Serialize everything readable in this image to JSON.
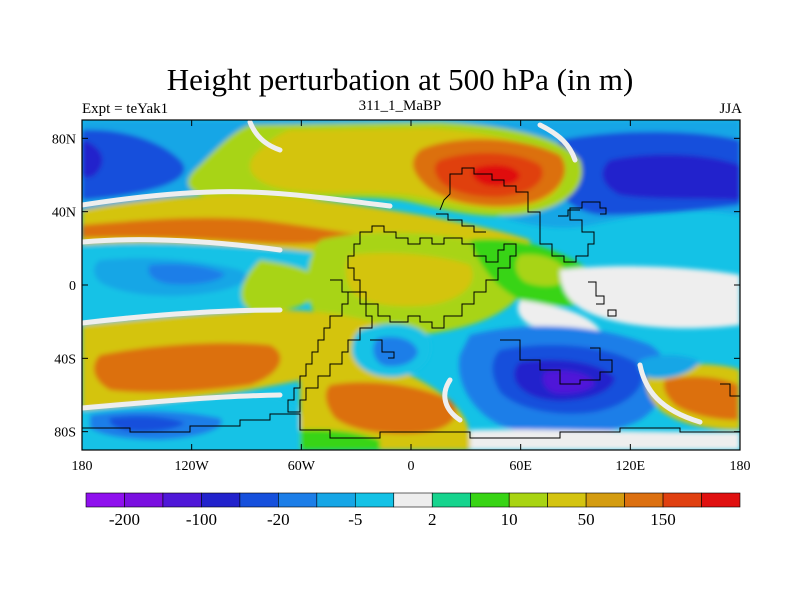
{
  "title": "Height perturbation at 500 hPa (in m)",
  "left_label": "Expt = teYak1",
  "center_label": "311_1_MaBP",
  "right_label": "JJA",
  "x_ticks": [
    {
      "lon": -180,
      "label": "180"
    },
    {
      "lon": -120,
      "label": "120W"
    },
    {
      "lon": -60,
      "label": "60W"
    },
    {
      "lon": 0,
      "label": "0"
    },
    {
      "lon": 60,
      "label": "60E"
    },
    {
      "lon": 120,
      "label": "120E"
    },
    {
      "lon": 180,
      "label": "180"
    }
  ],
  "y_ticks": [
    {
      "lat": 80,
      "label": "80N"
    },
    {
      "lat": 40,
      "label": "40N"
    },
    {
      "lat": 0,
      "label": "0"
    },
    {
      "lat": -40,
      "label": "40S"
    },
    {
      "lat": -80,
      "label": "80S"
    }
  ],
  "lon_range": [
    -180,
    180
  ],
  "lat_range": [
    -90,
    90
  ],
  "colorbar": {
    "colors": [
      "#8f10ee",
      "#7a0fe0",
      "#4f17d8",
      "#2222cc",
      "#1650dc",
      "#1c7ee8",
      "#16a6e6",
      "#14c2e6",
      "#eeeeee",
      "#16d48e",
      "#38d414",
      "#a8d412",
      "#d4c410",
      "#d49c10",
      "#dc7010",
      "#e04010",
      "#e01010"
    ],
    "labels": [
      {
        "boundary": 1,
        "text": "-200"
      },
      {
        "boundary": 3,
        "text": "-100"
      },
      {
        "boundary": 5,
        "text": "-20"
      },
      {
        "boundary": 7,
        "text": "-5"
      },
      {
        "boundary": 9,
        "text": "2"
      },
      {
        "boundary": 11,
        "text": "10"
      },
      {
        "boundary": 13,
        "text": "50"
      },
      {
        "boundary": 15,
        "text": "150"
      }
    ]
  },
  "field_bands": [
    {
      "name": "arctic-south",
      "color": "#1c7ee8"
    },
    {
      "name": "subtropics",
      "color": "#d4c410"
    },
    {
      "name": "neutral",
      "color": "#eeeeee"
    }
  ]
}
